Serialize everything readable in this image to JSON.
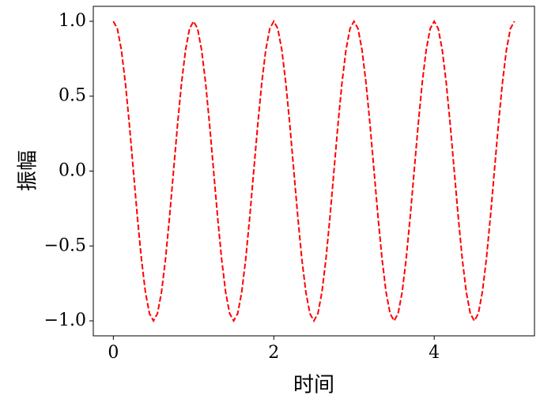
{
  "chart_data": {
    "type": "line",
    "xlabel": "时间",
    "ylabel": "振幅",
    "xlim": [
      -0.25,
      5.25
    ],
    "ylim": [
      -1.1,
      1.1
    ],
    "xticks": [
      0,
      2,
      4
    ],
    "yticks": [
      {
        "value": 1,
        "label": "1.0"
      },
      {
        "value": 0.5,
        "label": "0.5"
      },
      {
        "value": 0,
        "label": "0.0"
      },
      {
        "value": -0.5,
        "label": "−0.5"
      },
      {
        "value": -1,
        "label": "−1.0"
      }
    ],
    "x": [
      0,
      0.05,
      0.1,
      0.15,
      0.2,
      0.25,
      0.3,
      0.35,
      0.4,
      0.45,
      0.5,
      0.55,
      0.6,
      0.65,
      0.7,
      0.75,
      0.8,
      0.85,
      0.9,
      0.95,
      1,
      1.05,
      1.1,
      1.15,
      1.2,
      1.25,
      1.3,
      1.35,
      1.4,
      1.45,
      1.5,
      1.55,
      1.6,
      1.65,
      1.7,
      1.75,
      1.8,
      1.85,
      1.9,
      1.95,
      2,
      2.05,
      2.1,
      2.15,
      2.2,
      2.25,
      2.3,
      2.35,
      2.4,
      2.45,
      2.5,
      2.55,
      2.6,
      2.65,
      2.7,
      2.75,
      2.8,
      2.85,
      2.9,
      2.95,
      3,
      3.05,
      3.1,
      3.15,
      3.2,
      3.25,
      3.3,
      3.35,
      3.4,
      3.45,
      3.5,
      3.55,
      3.6,
      3.65,
      3.7,
      3.75,
      3.8,
      3.85,
      3.9,
      3.95,
      4,
      4.05,
      4.1,
      4.15,
      4.2,
      4.25,
      4.3,
      4.35,
      4.4,
      4.45,
      4.5,
      4.55,
      4.6,
      4.65,
      4.7,
      4.75,
      4.8,
      4.85,
      4.9,
      4.95,
      5
    ],
    "series": [
      {
        "color": "#ff0000",
        "linestyle": "dashed",
        "values": [
          1,
          0.951,
          0.809,
          0.588,
          0.309,
          0,
          -0.309,
          -0.588,
          -0.809,
          -0.951,
          -1,
          -0.951,
          -0.809,
          -0.588,
          -0.309,
          0,
          0.309,
          0.588,
          0.809,
          0.951,
          1,
          0.951,
          0.809,
          0.588,
          0.309,
          0,
          -0.309,
          -0.588,
          -0.809,
          -0.951,
          -1,
          -0.951,
          -0.809,
          -0.588,
          -0.309,
          0,
          0.309,
          0.588,
          0.809,
          0.951,
          1,
          0.951,
          0.809,
          0.588,
          0.309,
          0,
          -0.309,
          -0.588,
          -0.809,
          -0.951,
          -1,
          -0.951,
          -0.809,
          -0.588,
          -0.309,
          0,
          0.309,
          0.588,
          0.809,
          0.951,
          1,
          0.951,
          0.809,
          0.588,
          0.309,
          0,
          -0.309,
          -0.588,
          -0.809,
          -0.951,
          -1,
          -0.951,
          -0.809,
          -0.588,
          -0.309,
          0,
          0.309,
          0.588,
          0.809,
          0.951,
          1,
          0.951,
          0.809,
          0.588,
          0.309,
          0,
          -0.309,
          -0.588,
          -0.809,
          -0.951,
          -1,
          -0.951,
          -0.809,
          -0.588,
          -0.309,
          0,
          0.309,
          0.588,
          0.809,
          0.951,
          1
        ]
      }
    ]
  }
}
